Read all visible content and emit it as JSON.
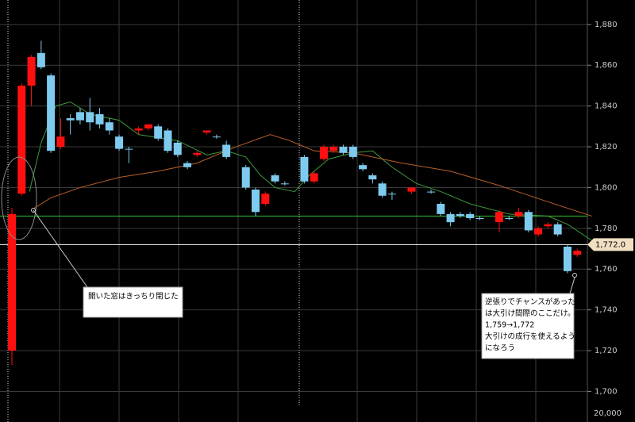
{
  "chart_data": {
    "type": "candlestick",
    "ylim": [
      1685,
      1892
    ],
    "yticks": [
      {
        "value": 1700,
        "label": "1,700"
      },
      {
        "value": 1720,
        "label": "1,720"
      },
      {
        "value": 1740,
        "label": "1,740"
      },
      {
        "value": 1760,
        "label": "1,760"
      },
      {
        "value": 1780,
        "label": "1,780"
      },
      {
        "value": 1800,
        "label": "1,800"
      },
      {
        "value": 1820,
        "label": "1,820"
      },
      {
        "value": 1840,
        "label": "1,840"
      },
      {
        "value": 1860,
        "label": "1,860"
      },
      {
        "value": 1880,
        "label": "1,880"
      }
    ],
    "grid": true,
    "up_color": "#ff1010",
    "down_color": "#7ecbef",
    "open": [
      1720,
      1797,
      1850,
      1866,
      1855,
      1820,
      1834,
      1837,
      1837,
      1836,
      1832,
      1825,
      1819,
      1828,
      1829,
      1830,
      1828,
      1822,
      1812,
      1816,
      1827,
      1825,
      1821,
      null,
      1810,
      1799,
      1792,
      1806,
      1802,
      null,
      1815,
      1803,
      1814,
      1818,
      1820,
      1820,
      1811,
      1806,
      1802,
      1797,
      null,
      1798,
      null,
      1798,
      1792,
      1787,
      1787,
      1787,
      1785,
      null,
      1783,
      1785,
      1786,
      1788,
      1777,
      1781,
      1782,
      1771,
      1767
    ],
    "high": [
      1790,
      1851,
      1865,
      1872,
      1856,
      1834,
      1836,
      1839,
      1844,
      1839,
      1834,
      1826,
      1820,
      1830,
      1831,
      1831,
      1829,
      1823,
      1813,
      1818,
      1828,
      1826,
      1823,
      null,
      1811,
      1800,
      1798,
      1807,
      1803,
      null,
      1816,
      1808,
      1821,
      1821,
      1821,
      1821,
      1812,
      1807,
      1803,
      1798,
      null,
      1800,
      null,
      1799,
      1793,
      1788,
      1788,
      1788,
      1786,
      null,
      1789,
      1786,
      1790,
      1789,
      1781,
      1783,
      1783,
      1772,
      1770
    ],
    "low": [
      1713,
      1796,
      1840,
      1858,
      1817,
      1819,
      1826,
      1831,
      1828,
      1829,
      1826,
      1818,
      1812,
      1826,
      1828,
      1823,
      1817,
      1815,
      1809,
      1815,
      1826,
      1824,
      1814,
      null,
      1799,
      1786,
      1791,
      1802,
      1801,
      null,
      1802,
      1802,
      1813,
      1817,
      1816,
      1814,
      1808,
      1802,
      1795,
      1794,
      null,
      1797,
      null,
      1797,
      1786,
      1781,
      1785,
      1784,
      1784,
      null,
      1778,
      1784,
      1785,
      1778,
      1776,
      1780,
      1776,
      1758,
      1766
    ],
    "close": [
      1787,
      1850,
      1864,
      1859,
      1818,
      1825,
      1833,
      1833,
      1832,
      1831,
      1828,
      1819,
      1819,
      1829,
      1831,
      1824,
      1818,
      1816,
      1810,
      1817,
      1828,
      1825,
      1815,
      null,
      1800,
      1788,
      1797,
      1803,
      1802,
      null,
      1803,
      1807,
      1820,
      1820,
      1817,
      1815,
      1809,
      1804,
      1796,
      1797,
      null,
      1800,
      null,
      1798,
      1787,
      1783,
      1786,
      1785,
      1785,
      null,
      1788,
      1785,
      1788,
      1779,
      1780,
      1782,
      1777,
      1759,
      1769
    ],
    "moving_averages": [
      {
        "color": "#3c9a3c",
        "x": [
          1.8,
          3,
          4.5,
          6,
          8,
          11,
          13,
          17,
          20,
          22,
          24,
          25.5,
          27,
          29,
          30.5,
          32.5,
          35,
          37,
          39,
          41.5,
          44,
          47,
          51,
          55,
          57,
          59.5
        ],
        "values": [
          1798,
          1822,
          1840,
          1842,
          1836,
          1833,
          1826,
          1823,
          1816,
          1818,
          1815,
          1806,
          1800,
          1798,
          1806,
          1814,
          1817,
          1818,
          1810,
          1802,
          1798,
          1792,
          1787,
          1786,
          1782,
          1774
        ]
      },
      {
        "color": "#b8602a",
        "x": [
          2,
          4,
          7,
          11,
          15,
          19,
          23,
          26.5,
          28.5,
          31,
          35,
          40,
          45,
          50,
          55,
          59.5
        ],
        "values": [
          1789,
          1795,
          1800,
          1805,
          1808,
          1812,
          1820,
          1826,
          1823,
          1818,
          1817,
          1812,
          1808,
          1801,
          1793,
          1786
        ]
      }
    ],
    "reference_lines": [
      {
        "value": 1786,
        "color": "#2ec02e"
      },
      {
        "value": 1772,
        "color": "#ffffff",
        "label": "1,772.0"
      }
    ],
    "volume_axis_label": "20,000",
    "annotations": [
      {
        "lines": [
          "開いた窓はきっちり閉じた"
        ]
      },
      {
        "lines": [
          "逆張りでチャンスがあったの",
          "は大引け間際のここだけ。",
          "1,759→1,772",
          "大引けの成行を使えるよう",
          "になろう"
        ]
      }
    ]
  }
}
